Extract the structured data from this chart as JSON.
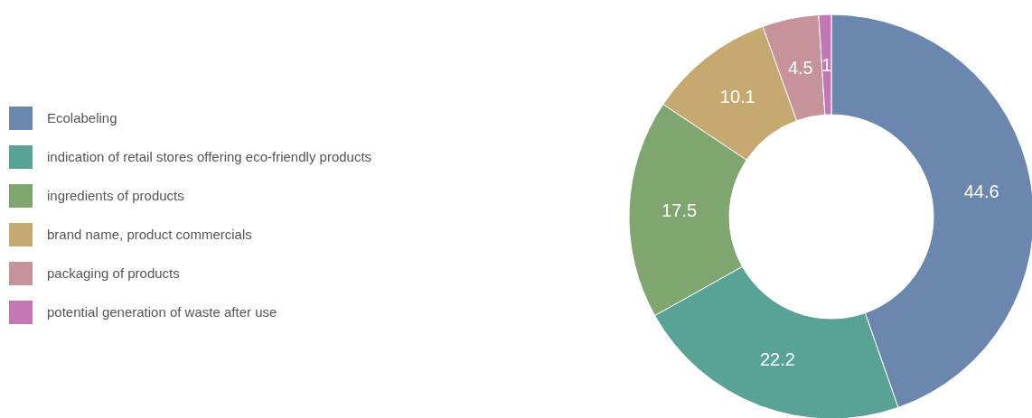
{
  "chart_data": {
    "type": "donut",
    "categories": [
      "Ecolabeling",
      "indication of retail stores offering eco-friendly products",
      "ingredients of products",
      "brand name, product commercials",
      "packaging of products",
      "potential generation of waste after use"
    ],
    "values": [
      44.6,
      22.2,
      17.5,
      10.1,
      4.5,
      1
    ],
    "colors": [
      "#6b87ae",
      "#58a296",
      "#80a66f",
      "#c6a971",
      "#c7939b",
      "#c676b3"
    ],
    "data_labels": true,
    "legend": "left"
  }
}
